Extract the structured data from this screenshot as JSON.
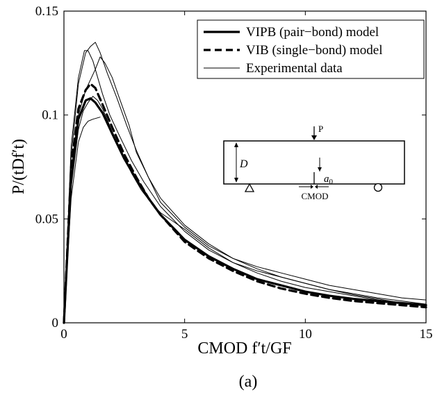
{
  "chart_data": {
    "type": "line",
    "panel_label": "(a)",
    "xlabel": "CMOD f′t/GF",
    "ylabel": "P/(tDf′t)",
    "xlim": [
      0,
      15
    ],
    "ylim": [
      0,
      0.15
    ],
    "x_ticks": [
      0,
      5,
      10,
      15
    ],
    "x_tick_labels": [
      "0",
      "5",
      "10",
      "15"
    ],
    "y_ticks": [
      0,
      0.05,
      0.1,
      0.15
    ],
    "y_tick_labels": [
      "0",
      "0.05",
      "0.1",
      "0.15"
    ],
    "grid": false,
    "legend_position": "top-right",
    "legend": [
      {
        "label": "VIPB (pair−bond) model",
        "style": "thick-solid"
      },
      {
        "label": "VIB (single−bond) model",
        "style": "thick-dashed"
      },
      {
        "label": "Experimental data",
        "style": "thin-solid"
      }
    ],
    "series": [
      {
        "name": "VIPB (pair−bond) model",
        "style": "thick-solid",
        "x": [
          0,
          0.3,
          0.6,
          0.9,
          1.1,
          1.3,
          1.6,
          2.0,
          2.5,
          3.0,
          3.5,
          4.0,
          5.0,
          6.0,
          7.0,
          8.0,
          9.0,
          10.0,
          11.0,
          12.0,
          13.0,
          14.0,
          15.0
        ],
        "y": [
          0,
          0.07,
          0.098,
          0.107,
          0.108,
          0.106,
          0.101,
          0.091,
          0.079,
          0.069,
          0.06,
          0.052,
          0.04,
          0.032,
          0.026,
          0.021,
          0.018,
          0.015,
          0.013,
          0.0115,
          0.0105,
          0.0095,
          0.0085
        ]
      },
      {
        "name": "VIB (single−bond) model",
        "style": "thick-dashed",
        "x": [
          0,
          0.3,
          0.6,
          0.9,
          1.1,
          1.3,
          1.6,
          2.0,
          2.5,
          3.0,
          3.5,
          4.0,
          5.0,
          6.0,
          7.0,
          8.0,
          9.0,
          10.0,
          11.0,
          12.0,
          13.0,
          14.0,
          15.0
        ],
        "y": [
          0,
          0.075,
          0.103,
          0.112,
          0.115,
          0.113,
          0.105,
          0.094,
          0.081,
          0.07,
          0.06,
          0.052,
          0.039,
          0.031,
          0.025,
          0.02,
          0.0165,
          0.014,
          0.012,
          0.0105,
          0.0095,
          0.0085,
          0.0075
        ]
      },
      {
        "name": "Experimental data 1",
        "style": "thin-solid",
        "x": [
          0,
          0.3,
          0.6,
          0.9,
          1.1,
          1.3,
          1.5,
          1.8,
          2.2,
          2.6,
          3.0,
          3.5,
          4.0,
          5.0,
          6.0,
          7.0,
          8.0,
          9.0,
          10.0,
          11.0,
          12.0,
          13.0,
          14.0,
          15.0
        ],
        "y": [
          0,
          0.08,
          0.115,
          0.13,
          0.133,
          0.135,
          0.13,
          0.12,
          0.108,
          0.095,
          0.083,
          0.07,
          0.058,
          0.046,
          0.037,
          0.031,
          0.027,
          0.024,
          0.021,
          0.018,
          0.016,
          0.014,
          0.012,
          0.011
        ]
      },
      {
        "name": "Experimental data 2",
        "style": "thin-solid",
        "x": [
          0,
          0.3,
          0.6,
          0.85,
          1.0,
          1.2,
          1.4,
          1.6,
          1.9,
          2.3,
          2.8,
          3.3,
          4.0,
          5.0,
          6.0,
          7.0,
          8.0,
          9.0,
          10.0,
          11.0,
          12.0,
          13.0,
          14.0,
          15.0
        ],
        "y": [
          0,
          0.085,
          0.118,
          0.131,
          0.131,
          0.126,
          0.118,
          0.11,
          0.1,
          0.09,
          0.078,
          0.068,
          0.056,
          0.044,
          0.035,
          0.029,
          0.025,
          0.022,
          0.019,
          0.016,
          0.014,
          0.012,
          0.0105,
          0.009
        ]
      },
      {
        "name": "Experimental data 3",
        "style": "thin-solid",
        "x": [
          0,
          0.3,
          0.6,
          0.9,
          1.1,
          1.3,
          1.5,
          1.7,
          2.0,
          2.3,
          2.7,
          3.0,
          3.5,
          4.0,
          5.0,
          6.0,
          7.0,
          8.0,
          9.0,
          10.0,
          11.0,
          12.0,
          13.0,
          14.0,
          15.0
        ],
        "y": [
          0,
          0.07,
          0.1,
          0.112,
          0.117,
          0.122,
          0.128,
          0.125,
          0.118,
          0.108,
          0.095,
          0.082,
          0.07,
          0.06,
          0.047,
          0.038,
          0.031,
          0.026,
          0.022,
          0.019,
          0.016,
          0.0135,
          0.0115,
          0.0095,
          0.0085
        ]
      },
      {
        "name": "Experimental data 4",
        "style": "thin-solid",
        "x": [
          0,
          0.3,
          0.6,
          0.8,
          1.0,
          1.2,
          1.4,
          1.6,
          2.0,
          2.4,
          2.8,
          3.2,
          3.6,
          4.0,
          5.0,
          6.0,
          7.0,
          8.0,
          9.0,
          10.0,
          11.0,
          12.0,
          13.0,
          14.0,
          15.0
        ],
        "y": [
          0,
          0.065,
          0.093,
          0.102,
          0.106,
          0.109,
          0.107,
          0.103,
          0.092,
          0.082,
          0.072,
          0.064,
          0.058,
          0.053,
          0.045,
          0.036,
          0.029,
          0.024,
          0.02,
          0.017,
          0.015,
          0.013,
          0.011,
          0.0095,
          0.008
        ]
      },
      {
        "name": "Experimental data 5",
        "style": "thin-solid",
        "x": [
          0,
          0.3,
          0.6,
          0.8,
          1.0,
          1.2,
          1.5
        ],
        "y": [
          0,
          0.06,
          0.087,
          0.094,
          0.097,
          0.098,
          0.099
        ]
      }
    ],
    "inset": {
      "load_label": "P",
      "depth_label": "D",
      "notch_label": "a",
      "notch_subscript": "0",
      "cmod_label": "CMOD"
    }
  }
}
